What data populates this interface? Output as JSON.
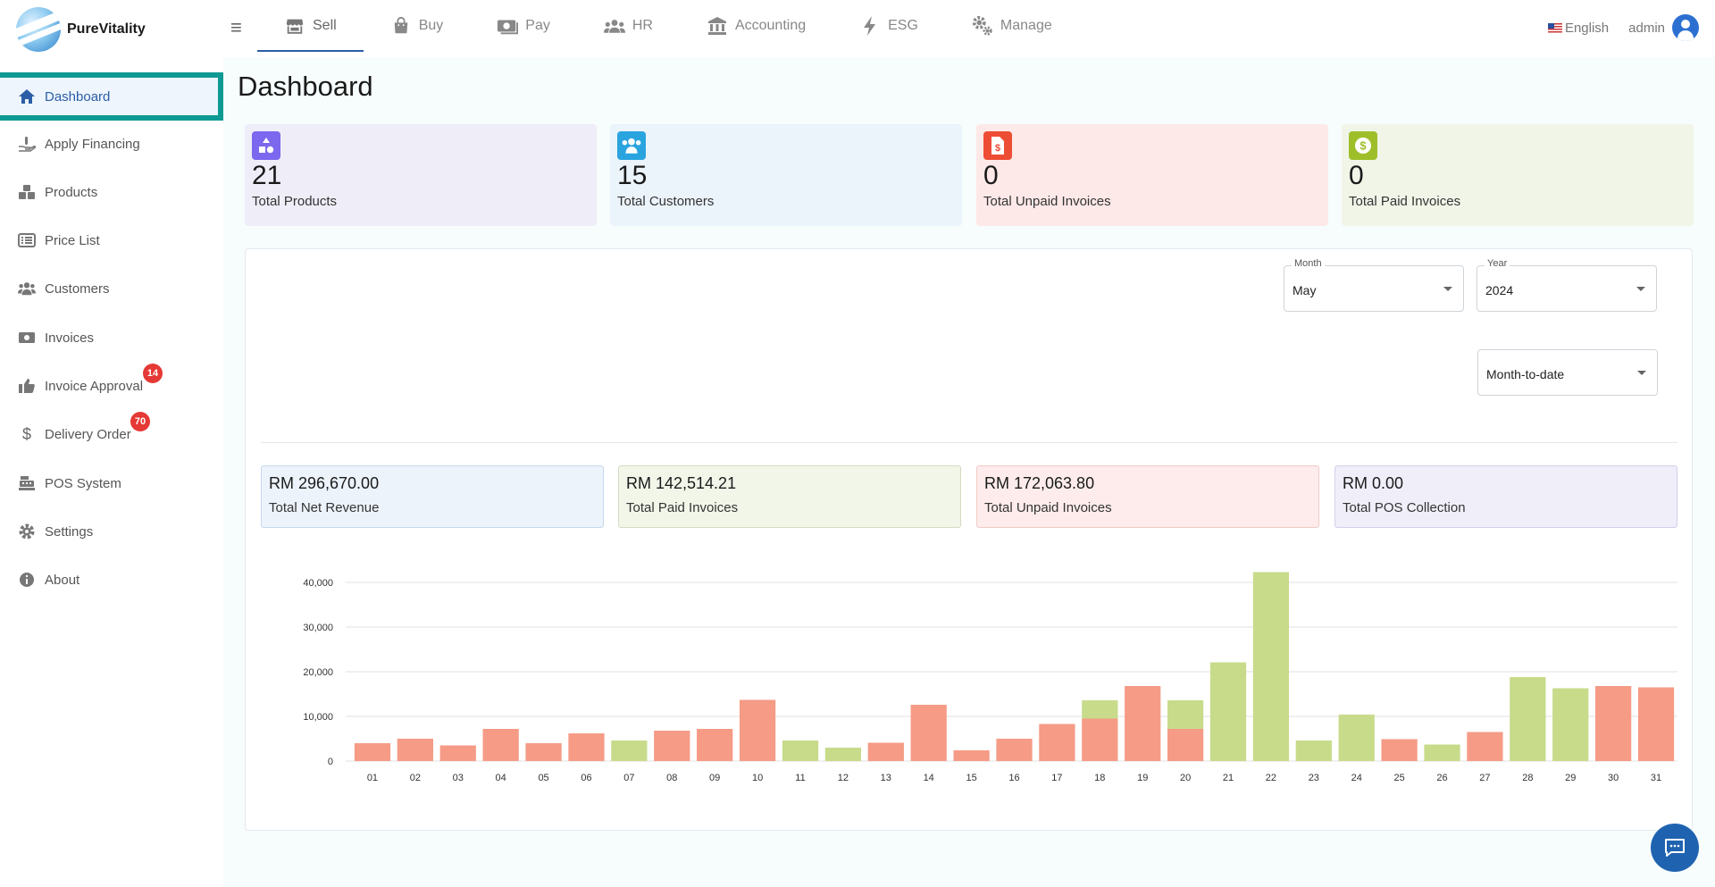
{
  "app": {
    "name": "PureVitality"
  },
  "topnav": {
    "items": [
      {
        "label": "Sell",
        "icon": "store-icon",
        "active": true
      },
      {
        "label": "Buy",
        "icon": "shopping-bag-icon"
      },
      {
        "label": "Pay",
        "icon": "money-bill-icon"
      },
      {
        "label": "HR",
        "icon": "people-group-icon"
      },
      {
        "label": "Accounting",
        "icon": "bank-icon"
      },
      {
        "label": "ESG",
        "icon": "bolt-icon"
      },
      {
        "label": "Manage",
        "icon": "gears-icon"
      }
    ],
    "language": "English",
    "user": "admin"
  },
  "sidebar": {
    "items": [
      {
        "label": "Dashboard",
        "icon": "home-icon",
        "active": true
      },
      {
        "label": "Apply Financing",
        "icon": "hand-holding-dollar-icon"
      },
      {
        "label": "Products",
        "icon": "cubes-icon"
      },
      {
        "label": "Price List",
        "icon": "list-icon"
      },
      {
        "label": "Customers",
        "icon": "users-icon"
      },
      {
        "label": "Invoices",
        "icon": "money-bill-icon"
      },
      {
        "label": "Invoice Approval",
        "icon": "thumbs-up-icon",
        "badge": "14"
      },
      {
        "label": "Delivery Order",
        "icon": "dollar-sign-icon",
        "badge": "70"
      },
      {
        "label": "POS System",
        "icon": "cash-register-icon"
      },
      {
        "label": "Settings",
        "icon": "gear-icon"
      },
      {
        "label": "About",
        "icon": "info-circle-icon"
      }
    ]
  },
  "page": {
    "title": "Dashboard"
  },
  "stats": [
    {
      "value": "21",
      "label": "Total Products",
      "icon": "shapes-icon",
      "bg": "#efedf8",
      "iconBg": "#7b68ee"
    },
    {
      "value": "15",
      "label": "Total Customers",
      "icon": "users-icon",
      "bg": "#ebf3fb",
      "iconBg": "#2aa4df"
    },
    {
      "value": "0",
      "label": "Total Unpaid Invoices",
      "icon": "file-dollar-icon",
      "bg": "#fde9e8",
      "iconBg": "#ee4d35"
    },
    {
      "value": "0",
      "label": "Total Paid Invoices",
      "icon": "dollar-circle-icon",
      "bg": "#f1f5e8",
      "iconBg": "#9fbf2a"
    }
  ],
  "filters": {
    "month": {
      "label": "Month",
      "value": "May"
    },
    "year": {
      "label": "Year",
      "value": "2024"
    },
    "period": {
      "value": "Month-to-date"
    }
  },
  "kpis": [
    {
      "value": "RM 296,670.00",
      "label": "Total Net Revenue",
      "bg": "#ecf3fb",
      "border": "#c6d8ec"
    },
    {
      "value": "RM 142,514.21",
      "label": "Total Paid Invoices",
      "bg": "#f1f6e9",
      "border": "#d2dcc1"
    },
    {
      "value": "RM 172,063.80",
      "label": "Total Unpaid Invoices",
      "bg": "#fdeceb",
      "border": "#efcbc7"
    },
    {
      "value": "RM 0.00",
      "label": "Total POS Collection",
      "bg": "#efeef9",
      "border": "#d2d0ea"
    }
  ],
  "chart_data": {
    "type": "bar",
    "stacked": true,
    "categories": [
      "01",
      "02",
      "03",
      "04",
      "05",
      "06",
      "07",
      "08",
      "09",
      "10",
      "11",
      "12",
      "13",
      "14",
      "15",
      "16",
      "17",
      "18",
      "19",
      "20",
      "21",
      "22",
      "23",
      "24",
      "25",
      "26",
      "27",
      "28",
      "29",
      "30",
      "31"
    ],
    "series": [
      {
        "color": "#f59b86",
        "values": [
          4000,
          5000,
          3500,
          7200,
          4000,
          6200,
          0,
          6800,
          7200,
          13700,
          0,
          0,
          4100,
          12600,
          2400,
          5000,
          8300,
          9500,
          16800,
          7200,
          0,
          0,
          0,
          0,
          4900,
          0,
          6500,
          0,
          0,
          16800,
          16500
        ]
      },
      {
        "color": "#c7db8b",
        "values": [
          0,
          0,
          0,
          0,
          0,
          0,
          4600,
          0,
          0,
          0,
          4600,
          3000,
          0,
          0,
          0,
          0,
          0,
          4100,
          0,
          6400,
          22100,
          42300,
          4600,
          10400,
          0,
          3700,
          0,
          18800,
          16300,
          0,
          0
        ]
      }
    ],
    "yticks": [
      "0",
      "10,000",
      "20,000",
      "30,000",
      "40,000"
    ],
    "ylim": [
      0,
      40000
    ],
    "grid": true
  }
}
